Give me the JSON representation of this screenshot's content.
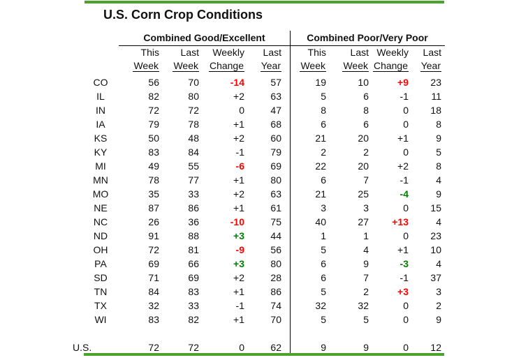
{
  "title": "U.S. Corn Crop Conditions",
  "sections": {
    "good": {
      "label": "Combined Good/Excellent"
    },
    "poor": {
      "label": "Combined Poor/Very Poor"
    }
  },
  "column_headers": {
    "line1": [
      "This",
      "Last",
      "Weekly",
      "Last"
    ],
    "line2": [
      "Week",
      "Week",
      "Change",
      "Year"
    ]
  },
  "colors": {
    "accent_line": "#4CA32C",
    "red_change": "#FF0000",
    "green_change": "#008000",
    "text": "#111111"
  },
  "chart_data": {
    "type": "table",
    "title": "U.S. Corn Crop Conditions",
    "column_groups": [
      "Combined Good/Excellent",
      "Combined Poor/Very Poor"
    ],
    "columns": [
      "This Week",
      "Last Week",
      "Weekly Change",
      "Last Year"
    ],
    "rows": [
      {
        "state": "CO",
        "good": {
          "this_week": "56",
          "last_week": "70",
          "change": "-14",
          "change_color": "red",
          "last_year": "57"
        },
        "poor": {
          "this_week": "19",
          "last_week": "10",
          "change": "+9",
          "change_color": "red",
          "last_year": "23"
        }
      },
      {
        "state": "IL",
        "good": {
          "this_week": "82",
          "last_week": "80",
          "change": "+2",
          "change_color": "none",
          "last_year": "63"
        },
        "poor": {
          "this_week": "5",
          "last_week": "6",
          "change": "-1",
          "change_color": "none",
          "last_year": "11"
        }
      },
      {
        "state": "IN",
        "good": {
          "this_week": "72",
          "last_week": "72",
          "change": "0",
          "change_color": "none",
          "last_year": "47"
        },
        "poor": {
          "this_week": "8",
          "last_week": "8",
          "change": "0",
          "change_color": "none",
          "last_year": "18"
        }
      },
      {
        "state": "IA",
        "good": {
          "this_week": "79",
          "last_week": "78",
          "change": "+1",
          "change_color": "none",
          "last_year": "68"
        },
        "poor": {
          "this_week": "6",
          "last_week": "6",
          "change": "0",
          "change_color": "none",
          "last_year": "8"
        }
      },
      {
        "state": "KS",
        "good": {
          "this_week": "50",
          "last_week": "48",
          "change": "+2",
          "change_color": "none",
          "last_year": "60"
        },
        "poor": {
          "this_week": "21",
          "last_week": "20",
          "change": "+1",
          "change_color": "none",
          "last_year": "9"
        }
      },
      {
        "state": "KY",
        "good": {
          "this_week": "83",
          "last_week": "84",
          "change": "-1",
          "change_color": "none",
          "last_year": "79"
        },
        "poor": {
          "this_week": "2",
          "last_week": "2",
          "change": "0",
          "change_color": "none",
          "last_year": "5"
        }
      },
      {
        "state": "MI",
        "good": {
          "this_week": "49",
          "last_week": "55",
          "change": "-6",
          "change_color": "red",
          "last_year": "69"
        },
        "poor": {
          "this_week": "22",
          "last_week": "20",
          "change": "+2",
          "change_color": "none",
          "last_year": "8"
        }
      },
      {
        "state": "MN",
        "good": {
          "this_week": "78",
          "last_week": "77",
          "change": "+1",
          "change_color": "none",
          "last_year": "80"
        },
        "poor": {
          "this_week": "6",
          "last_week": "7",
          "change": "-1",
          "change_color": "none",
          "last_year": "4"
        }
      },
      {
        "state": "MO",
        "good": {
          "this_week": "35",
          "last_week": "33",
          "change": "+2",
          "change_color": "none",
          "last_year": "63"
        },
        "poor": {
          "this_week": "21",
          "last_week": "25",
          "change": "-4",
          "change_color": "green",
          "last_year": "9"
        }
      },
      {
        "state": "NE",
        "good": {
          "this_week": "87",
          "last_week": "86",
          "change": "+1",
          "change_color": "none",
          "last_year": "61"
        },
        "poor": {
          "this_week": "3",
          "last_week": "3",
          "change": "0",
          "change_color": "none",
          "last_year": "15"
        }
      },
      {
        "state": "NC",
        "good": {
          "this_week": "26",
          "last_week": "36",
          "change": "-10",
          "change_color": "red",
          "last_year": "75"
        },
        "poor": {
          "this_week": "40",
          "last_week": "27",
          "change": "+13",
          "change_color": "red",
          "last_year": "4"
        }
      },
      {
        "state": "ND",
        "good": {
          "this_week": "91",
          "last_week": "88",
          "change": "+3",
          "change_color": "green",
          "last_year": "44"
        },
        "poor": {
          "this_week": "1",
          "last_week": "1",
          "change": "0",
          "change_color": "none",
          "last_year": "23"
        }
      },
      {
        "state": "OH",
        "good": {
          "this_week": "72",
          "last_week": "81",
          "change": "-9",
          "change_color": "red",
          "last_year": "56"
        },
        "poor": {
          "this_week": "5",
          "last_week": "4",
          "change": "+1",
          "change_color": "none",
          "last_year": "10"
        }
      },
      {
        "state": "PA",
        "good": {
          "this_week": "69",
          "last_week": "66",
          "change": "+3",
          "change_color": "green",
          "last_year": "80"
        },
        "poor": {
          "this_week": "6",
          "last_week": "9",
          "change": "-3",
          "change_color": "green",
          "last_year": "4"
        }
      },
      {
        "state": "SD",
        "good": {
          "this_week": "71",
          "last_week": "69",
          "change": "+2",
          "change_color": "none",
          "last_year": "28"
        },
        "poor": {
          "this_week": "6",
          "last_week": "7",
          "change": "-1",
          "change_color": "none",
          "last_year": "37"
        }
      },
      {
        "state": "TN",
        "good": {
          "this_week": "84",
          "last_week": "83",
          "change": "+1",
          "change_color": "none",
          "last_year": "86"
        },
        "poor": {
          "this_week": "5",
          "last_week": "2",
          "change": "+3",
          "change_color": "red",
          "last_year": "3"
        }
      },
      {
        "state": "TX",
        "good": {
          "this_week": "32",
          "last_week": "33",
          "change": "-1",
          "change_color": "none",
          "last_year": "74"
        },
        "poor": {
          "this_week": "32",
          "last_week": "32",
          "change": "0",
          "change_color": "none",
          "last_year": "2"
        }
      },
      {
        "state": "WI",
        "good": {
          "this_week": "83",
          "last_week": "82",
          "change": "+1",
          "change_color": "none",
          "last_year": "70"
        },
        "poor": {
          "this_week": "5",
          "last_week": "5",
          "change": "0",
          "change_color": "none",
          "last_year": "9"
        }
      }
    ],
    "summary": {
      "state": "U.S.",
      "good": {
        "this_week": "72",
        "last_week": "72",
        "change": "0",
        "change_color": "none",
        "last_year": "62"
      },
      "poor": {
        "this_week": "9",
        "last_week": "9",
        "change": "0",
        "change_color": "none",
        "last_year": "12"
      }
    }
  }
}
